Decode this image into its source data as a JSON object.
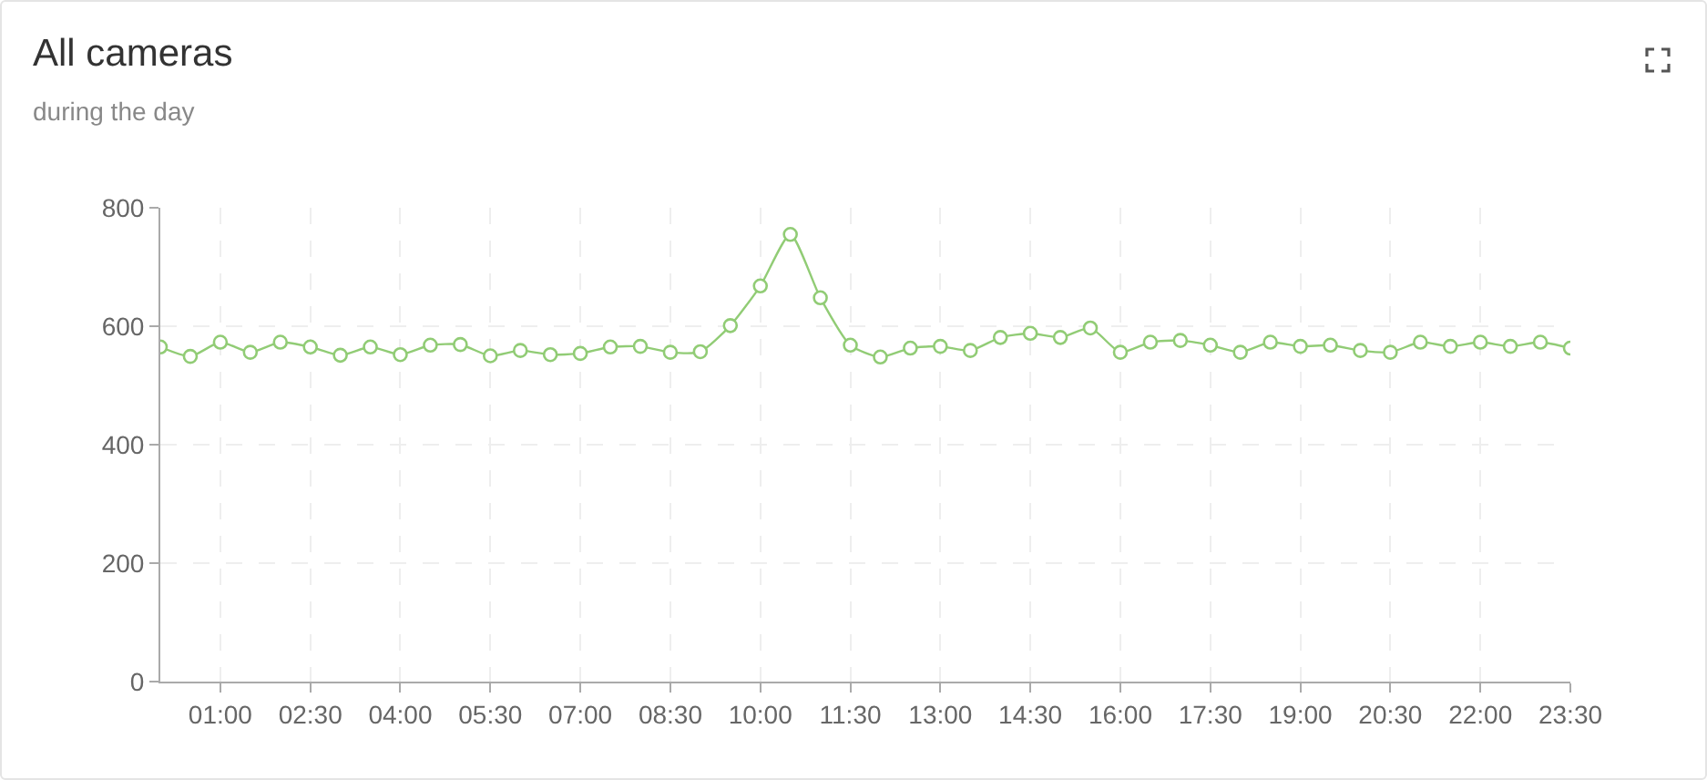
{
  "chart_data": {
    "type": "line",
    "title": "All cameras",
    "subtitle": "during the day",
    "x": [
      0,
      0.5,
      1,
      1.5,
      2,
      2.5,
      3,
      3.5,
      4,
      4.5,
      5,
      5.5,
      6,
      6.5,
      7,
      7.5,
      8,
      8.5,
      9,
      9.5,
      10,
      10.5,
      11,
      11.5,
      12,
      12.5,
      13,
      13.5,
      14,
      14.5,
      15,
      15.5,
      16,
      16.5,
      17,
      17.5,
      18,
      18.5,
      19,
      19.5,
      20,
      20.5,
      21,
      21.5,
      22,
      22.5,
      23,
      23.5
    ],
    "series": [
      {
        "color": "#91cc75",
        "values": [
          565,
          549,
          573,
          556,
          573,
          565,
          551,
          565,
          552,
          568,
          569,
          550,
          559,
          552,
          554,
          565,
          566,
          556,
          557,
          601,
          668,
          755,
          648,
          568,
          548,
          563,
          566,
          559,
          581,
          588,
          581,
          597,
          556,
          573,
          576,
          568,
          556,
          573,
          566,
          568,
          559,
          556,
          573,
          566,
          573,
          566,
          573,
          563
        ]
      }
    ],
    "xlim": [
      0,
      23.5
    ],
    "xticks": [
      {
        "value": 1,
        "label": "01:00"
      },
      {
        "value": 2.5,
        "label": "02:30"
      },
      {
        "value": 4,
        "label": "04:00"
      },
      {
        "value": 5.5,
        "label": "05:30"
      },
      {
        "value": 7,
        "label": "07:00"
      },
      {
        "value": 8.5,
        "label": "08:30"
      },
      {
        "value": 10,
        "label": "10:00"
      },
      {
        "value": 11.5,
        "label": "11:30"
      },
      {
        "value": 13,
        "label": "13:00"
      },
      {
        "value": 14.5,
        "label": "14:30"
      },
      {
        "value": 16,
        "label": "16:00"
      },
      {
        "value": 17.5,
        "label": "17:30"
      },
      {
        "value": 19,
        "label": "19:00"
      },
      {
        "value": 20.5,
        "label": "20:30"
      },
      {
        "value": 22,
        "label": "22:00"
      },
      {
        "value": 23.5,
        "label": "23:30"
      }
    ],
    "ylim": [
      0,
      800
    ],
    "yticks": [
      0,
      200,
      400,
      600,
      800
    ],
    "grid": true,
    "marker": "circle",
    "line_style": "solid"
  }
}
